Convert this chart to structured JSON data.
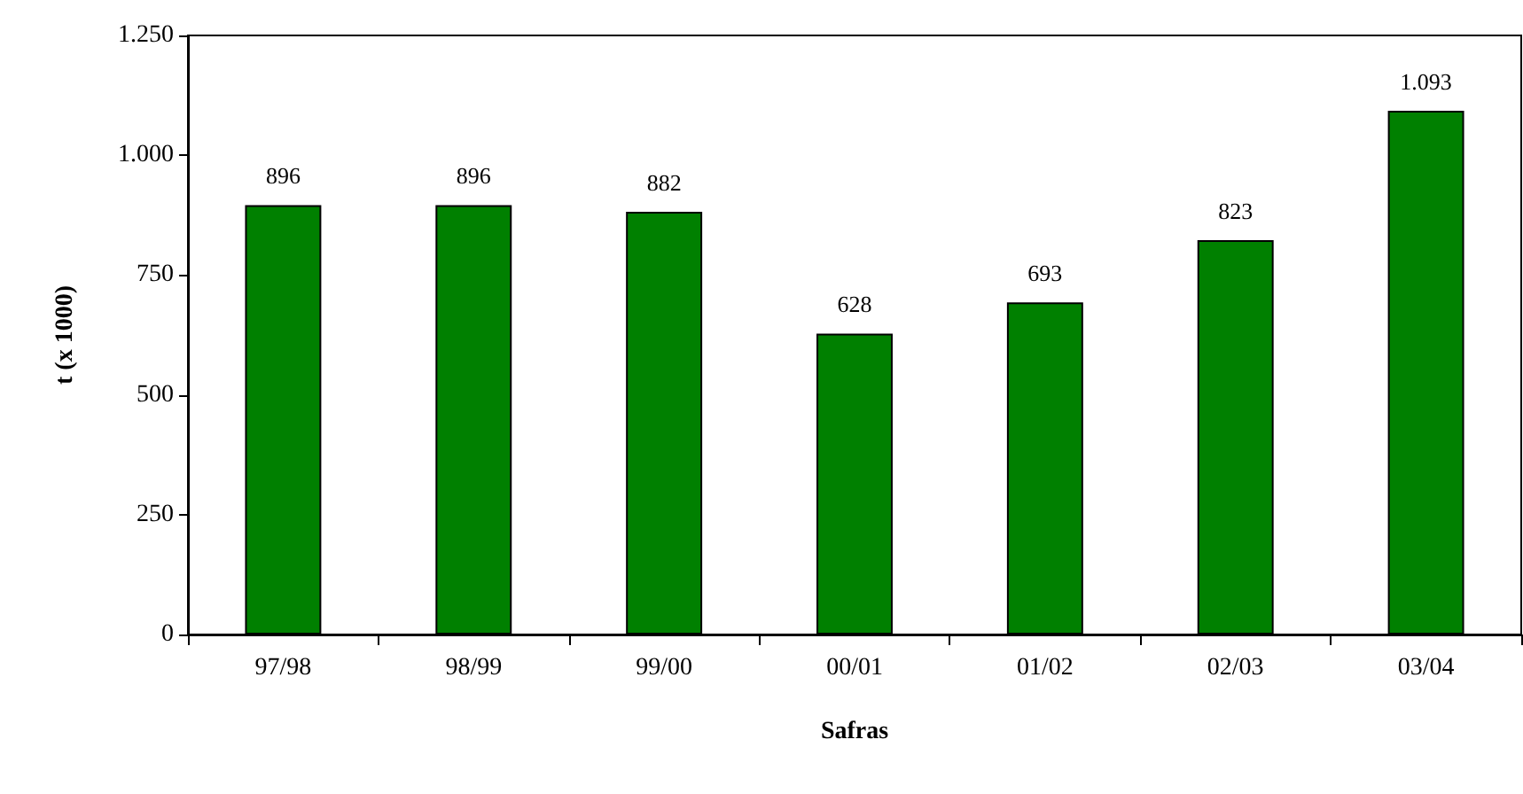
{
  "chart_data": {
    "type": "bar",
    "xlabel": "Safras",
    "ylabel": "t (x 1000)",
    "categories": [
      "97/98",
      "98/99",
      "99/00",
      "00/01",
      "01/02",
      "02/03",
      "03/04"
    ],
    "values": [
      896,
      896,
      882,
      628,
      693,
      823,
      1093
    ],
    "value_labels": [
      "896",
      "896",
      "882",
      "628",
      "693",
      "823",
      "1.093"
    ],
    "color": "#008000",
    "ylim": [
      0,
      1250
    ],
    "yticks": [
      0,
      250,
      500,
      750,
      {
        "value": 1000,
        "label": "1.000"
      },
      {
        "value": 1250,
        "label": "1.250"
      }
    ],
    "grid": false
  }
}
